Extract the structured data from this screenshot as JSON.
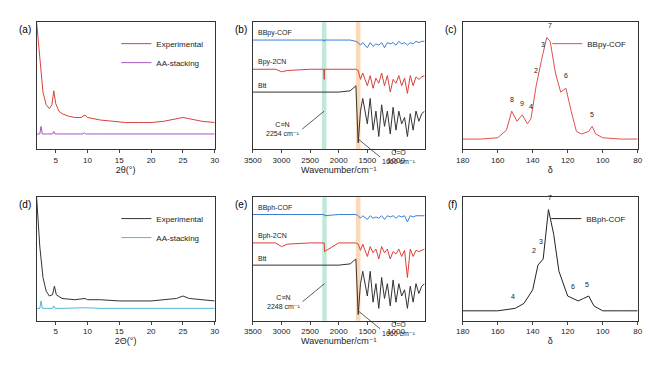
{
  "chart_data": [
    {
      "type": "line",
      "label": "(a)",
      "x_label": "2θ(°)",
      "xlim": [
        2,
        30
      ],
      "xticks": [
        5,
        10,
        15,
        20,
        25,
        30
      ],
      "ylim": [
        0,
        100
      ],
      "tick_labels": "x",
      "legend": "upper right",
      "series": [
        {
          "name": "Experimental",
          "color": "#d9413a",
          "x": [
            2,
            2.5,
            3,
            3.5,
            4,
            4.4,
            4.7,
            5,
            5.5,
            6,
            7,
            8,
            9,
            9.6,
            10,
            11,
            12,
            14,
            16,
            18,
            20,
            22,
            24,
            25,
            26,
            27,
            28,
            30
          ],
          "values": [
            100,
            70,
            45,
            35,
            32,
            35,
            46,
            36,
            30,
            28,
            26,
            25,
            25,
            27,
            25,
            24,
            23,
            22,
            21,
            21,
            21,
            22,
            24,
            25,
            24,
            23,
            22,
            21
          ]
        },
        {
          "name": "AA-stacking",
          "color": "#a855c8",
          "x": [
            2,
            2.5,
            2.7,
            2.9,
            3.5,
            4.5,
            4.7,
            4.9,
            6,
            9.3,
            9.5,
            9.7,
            12,
            20,
            25,
            30
          ],
          "values": [
            12,
            12,
            18,
            12,
            12,
            12,
            14,
            12,
            12,
            12,
            13,
            12,
            12,
            12,
            12.5,
            12
          ]
        }
      ]
    },
    {
      "type": "line",
      "label": "(b)",
      "x_label": "Wavenumber/cm⁻¹",
      "xlim": [
        3500,
        500
      ],
      "xticks": [
        3500,
        3000,
        2500,
        2000,
        1500,
        1000
      ],
      "ylim": [
        0,
        100
      ],
      "tick_labels": "x",
      "x": [
        3500,
        3300,
        3100,
        3000,
        2900,
        2500,
        2260,
        2254,
        2248,
        2000,
        1800,
        1700,
        1660,
        1620,
        1580,
        1500,
        1450,
        1400,
        1350,
        1300,
        1250,
        1200,
        1150,
        1100,
        1050,
        1000,
        950,
        900,
        850,
        800,
        750,
        700,
        650,
        600,
        550,
        500
      ],
      "series": [
        {
          "name": "BBpy-COF",
          "color": "#3a7fd5",
          "values": [
            86,
            86,
            86,
            86,
            86,
            86,
            86,
            85,
            86,
            86,
            86,
            85,
            84,
            82,
            84,
            80,
            84,
            81,
            83,
            82,
            84,
            80,
            84,
            83,
            84,
            82,
            85,
            83,
            84,
            82,
            84,
            83,
            85,
            84,
            85,
            85
          ]
        },
        {
          "name": "Bpy-2CN",
          "color": "#d9413a",
          "values": [
            63,
            63,
            63,
            61,
            62,
            63,
            63,
            55,
            63,
            63,
            63,
            63,
            62,
            55,
            60,
            50,
            58,
            48,
            56,
            52,
            60,
            50,
            58,
            45,
            55,
            52,
            58,
            50,
            56,
            44,
            58,
            50,
            57,
            55,
            57,
            58
          ]
        },
        {
          "name": "Btt",
          "color": "#333333",
          "values": [
            45,
            45,
            45,
            45,
            45,
            45,
            45,
            45,
            45,
            45,
            46,
            50,
            5,
            30,
            40,
            20,
            40,
            15,
            30,
            10,
            35,
            18,
            30,
            12,
            33,
            15,
            30,
            20,
            25,
            10,
            28,
            15,
            30,
            22,
            28,
            30
          ]
        }
      ],
      "highlights": [
        {
          "value": 2254,
          "color": "#9ad8c0"
        },
        {
          "value": 1660,
          "color": "#f6c08a"
        }
      ],
      "annotations": [
        {
          "text": [
            "C≡N",
            "2254 cm⁻¹"
          ],
          "x": 2254,
          "y": 30
        },
        {
          "text": [
            "C=O",
            "1660 cm⁻¹"
          ],
          "x": 1660,
          "y": 8
        }
      ]
    },
    {
      "type": "line",
      "label": "(c)",
      "x_label": "δ",
      "xlim": [
        180,
        80
      ],
      "xticks": [
        180,
        160,
        140,
        120,
        100,
        80
      ],
      "ylim": [
        0,
        100
      ],
      "tick_labels": "x",
      "legend": "upper right",
      "series": [
        {
          "name": "BBpy-COF",
          "color": "#e0504a",
          "x": [
            180,
            170,
            160,
            155,
            152,
            149,
            146,
            143,
            141,
            138,
            135,
            132,
            130,
            127,
            124,
            121,
            118,
            115,
            112,
            108,
            106,
            104,
            100,
            90,
            80
          ],
          "values": [
            8,
            8,
            9,
            15,
            30,
            22,
            27,
            20,
            24,
            50,
            70,
            88,
            85,
            60,
            45,
            48,
            30,
            14,
            12,
            14,
            18,
            12,
            9,
            8,
            8
          ]
        }
      ],
      "peak_labels": [
        {
          "text": "8",
          "x": 152,
          "y": 35
        },
        {
          "text": "9",
          "x": 146,
          "y": 32
        },
        {
          "text": "4",
          "x": 141,
          "y": 29
        },
        {
          "text": "2",
          "x": 138,
          "y": 58
        },
        {
          "text": "3",
          "x": 134,
          "y": 78
        },
        {
          "text": "7",
          "x": 130,
          "y": 93
        },
        {
          "text": "6",
          "x": 121,
          "y": 54
        },
        {
          "text": "5",
          "x": 106,
          "y": 23
        }
      ]
    },
    {
      "type": "line",
      "label": "(d)",
      "x_label": "2Θ(°)",
      "xlim": [
        2,
        30
      ],
      "xticks": [
        5,
        10,
        15,
        20,
        25,
        30
      ],
      "ylim": [
        0,
        100
      ],
      "tick_labels": "x",
      "legend": "upper right",
      "series": [
        {
          "name": "Experimental",
          "color": "#333333",
          "x": [
            2,
            2.5,
            3,
            3.5,
            4,
            4.5,
            4.8,
            5.1,
            6,
            8,
            9.6,
            10,
            12,
            15,
            20,
            24,
            25,
            26,
            28,
            30
          ],
          "values": [
            100,
            60,
            35,
            24,
            20,
            21,
            28,
            21,
            18,
            17,
            18,
            17,
            17,
            16,
            16,
            18,
            20,
            18,
            17,
            16
          ]
        },
        {
          "name": "AA-stacking",
          "color": "#4fb8d8",
          "x": [
            2,
            2.5,
            2.7,
            2.9,
            3.5,
            4.5,
            4.7,
            4.9,
            6,
            9.5,
            12,
            20,
            25,
            30
          ],
          "values": [
            10,
            10,
            16,
            10,
            10,
            10,
            12,
            10,
            10,
            10.5,
            10,
            10,
            10.5,
            10
          ]
        }
      ]
    },
    {
      "type": "line",
      "label": "(e)",
      "x_label": "Wavenumber/cm⁻¹",
      "xlim": [
        3500,
        500
      ],
      "xticks": [
        3500,
        3000,
        2500,
        2000,
        1500,
        1000
      ],
      "ylim": [
        0,
        100
      ],
      "tick_labels": "x",
      "x": [
        3500,
        3300,
        3100,
        3000,
        2900,
        2500,
        2260,
        2254,
        2248,
        2000,
        1800,
        1700,
        1660,
        1620,
        1580,
        1500,
        1450,
        1400,
        1350,
        1300,
        1250,
        1200,
        1150,
        1100,
        1050,
        1000,
        950,
        900,
        850,
        800,
        750,
        700,
        650,
        600,
        550,
        500
      ],
      "series": [
        {
          "name": "BBph-COF",
          "color": "#3a7fd5",
          "values": [
            86,
            86,
            86,
            86,
            86,
            86,
            86,
            86,
            85,
            86,
            86,
            86,
            85,
            83,
            85,
            82,
            85,
            83,
            84,
            83,
            85,
            82,
            85,
            84,
            85,
            83,
            85,
            84,
            85,
            80,
            85,
            84,
            85,
            85,
            85,
            85
          ]
        },
        {
          "name": "Bph-2CN",
          "color": "#d9413a",
          "values": [
            63,
            63,
            63,
            60,
            62,
            63,
            63,
            63,
            56,
            63,
            63,
            63,
            62,
            57,
            62,
            52,
            60,
            55,
            58,
            50,
            60,
            55,
            58,
            50,
            56,
            54,
            58,
            52,
            57,
            35,
            58,
            52,
            57,
            56,
            57,
            58
          ]
        },
        {
          "name": "Btt",
          "color": "#333333",
          "values": [
            45,
            45,
            45,
            45,
            45,
            45,
            45,
            45,
            45,
            45,
            46,
            50,
            5,
            30,
            40,
            20,
            40,
            15,
            30,
            10,
            35,
            18,
            30,
            12,
            33,
            15,
            30,
            20,
            25,
            10,
            28,
            15,
            30,
            22,
            28,
            30
          ]
        }
      ],
      "highlights": [
        {
          "value": 2248,
          "color": "#9ad8c0"
        },
        {
          "value": 1660,
          "color": "#f6c08a"
        }
      ],
      "annotations": [
        {
          "text": [
            "C≡N",
            "2248 cm⁻¹"
          ],
          "x": 2248,
          "y": 30
        },
        {
          "text": [
            "C=O",
            "1660 cm⁻¹"
          ],
          "x": 1660,
          "y": 8
        }
      ]
    },
    {
      "type": "line",
      "label": "(f)",
      "x_label": "δ",
      "xlim": [
        180,
        80
      ],
      "xticks": [
        180,
        160,
        140,
        120,
        100,
        80
      ],
      "ylim": [
        0,
        100
      ],
      "tick_labels": "x",
      "legend": "upper right",
      "series": [
        {
          "name": "BBph-COF",
          "color": "#222222",
          "x": [
            180,
            170,
            160,
            150,
            145,
            140,
            137,
            134,
            131,
            128,
            125,
            120,
            117,
            114,
            111,
            108,
            105,
            100,
            90,
            80
          ],
          "values": [
            8,
            8,
            8,
            10,
            14,
            25,
            45,
            50,
            90,
            70,
            40,
            20,
            18,
            16,
            18,
            20,
            12,
            8,
            8,
            8
          ]
        }
      ],
      "peak_labels": [
        {
          "text": "4",
          "x": 151,
          "y": 15
        },
        {
          "text": "2",
          "x": 139,
          "y": 52
        },
        {
          "text": "3",
          "x": 135,
          "y": 60
        },
        {
          "text": "7",
          "x": 130,
          "y": 95
        },
        {
          "text": "6",
          "x": 117,
          "y": 23
        },
        {
          "text": "5",
          "x": 109,
          "y": 25
        }
      ]
    }
  ]
}
